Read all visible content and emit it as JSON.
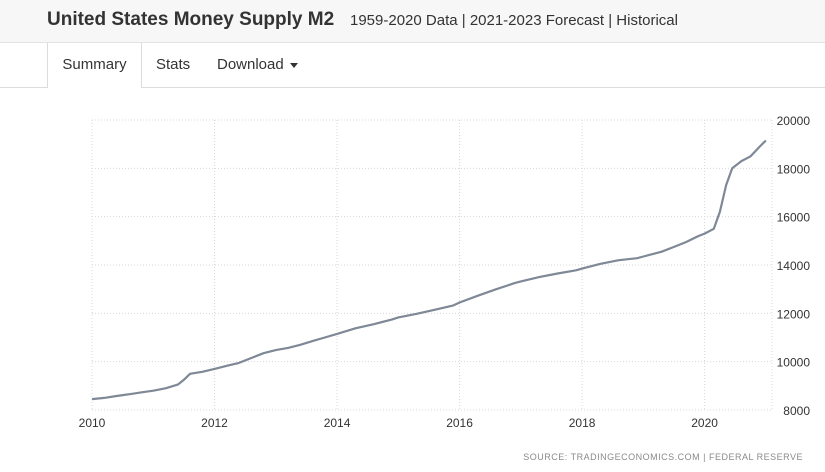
{
  "header": {
    "title": "United States Money Supply M2",
    "subtitle": "1959-2020 Data | 2021-2023 Forecast | Historical"
  },
  "tabs": [
    {
      "label": "Summary",
      "active": true
    },
    {
      "label": "Stats",
      "active": false
    },
    {
      "label": "Download",
      "active": false,
      "icon": "caret-down-icon"
    }
  ],
  "source": "SOURCE: TRADINGECONOMICS.COM  |  FEDERAL RESERVE",
  "colors": {
    "line": "#7f8896",
    "grid": "#d8d8d8"
  },
  "chart_data": {
    "type": "line",
    "title": "",
    "xlabel": "",
    "ylabel": "",
    "xlim": [
      2010,
      2021.1
    ],
    "ylim": [
      8000,
      20000
    ],
    "x_ticks": [
      2010,
      2012,
      2014,
      2016,
      2018,
      2020
    ],
    "y_ticks": [
      8000,
      10000,
      12000,
      14000,
      16000,
      18000,
      20000
    ],
    "y_axis_position": "right",
    "grid": true,
    "series": [
      {
        "x": [
          2010.0,
          2010.2,
          2010.4,
          2010.6,
          2010.8,
          2011.0,
          2011.2,
          2011.4,
          2011.5,
          2011.6,
          2011.8,
          2012.0,
          2012.2,
          2012.4,
          2012.6,
          2012.8,
          2013.0,
          2013.2,
          2013.4,
          2013.6,
          2013.8,
          2014.0,
          2014.3,
          2014.6,
          2014.9,
          2015.0,
          2015.3,
          2015.6,
          2015.9,
          2016.0,
          2016.3,
          2016.6,
          2016.9,
          2017.0,
          2017.3,
          2017.6,
          2017.9,
          2018.0,
          2018.3,
          2018.6,
          2018.9,
          2019.0,
          2019.3,
          2019.5,
          2019.7,
          2019.9,
          2020.0,
          2020.15,
          2020.25,
          2020.35,
          2020.45,
          2020.6,
          2020.75,
          2020.9,
          2021.0
        ],
        "y": [
          8450,
          8500,
          8580,
          8650,
          8730,
          8800,
          8900,
          9050,
          9250,
          9500,
          9580,
          9700,
          9830,
          9950,
          10150,
          10350,
          10480,
          10570,
          10700,
          10850,
          11000,
          11150,
          11380,
          11550,
          11750,
          11830,
          11980,
          12150,
          12330,
          12450,
          12730,
          13000,
          13250,
          13320,
          13500,
          13650,
          13780,
          13850,
          14050,
          14200,
          14280,
          14350,
          14550,
          14750,
          14950,
          15200,
          15300,
          15500,
          16200,
          17300,
          18000,
          18300,
          18500,
          18900,
          19150
        ]
      }
    ]
  }
}
